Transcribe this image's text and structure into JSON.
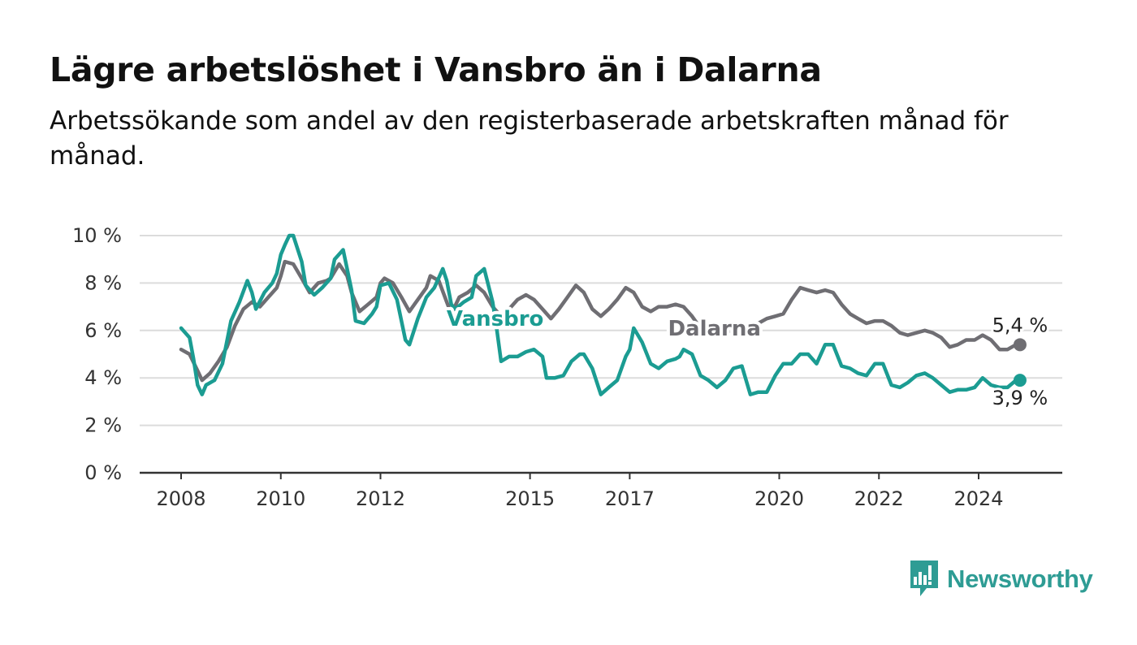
{
  "header": {
    "title": "Lägre arbetslöshet i Vansbro än i Dalarna",
    "subtitle": "Arbetssökande som andel av den registerbaserade arbetskraften månad för månad."
  },
  "brand": {
    "name": "Newsworthy",
    "color": "#2e9c94"
  },
  "chart_data": {
    "type": "line",
    "title": "Lägre arbetslöshet i Vansbro än i Dalarna",
    "subtitle": "Arbetssökande som andel av den registerbaserade arbetskraften månad för månad.",
    "xlabel": "",
    "ylabel": "",
    "x_unit": "year (decimal, monthly)",
    "xlim": [
      2008,
      2024.83
    ],
    "ylim": [
      0,
      10
    ],
    "y_ticks": [
      {
        "value": 0,
        "label": "0 %"
      },
      {
        "value": 2,
        "label": "2 %"
      },
      {
        "value": 4,
        "label": "4 %"
      },
      {
        "value": 6,
        "label": "6 %"
      },
      {
        "value": 8,
        "label": "8 %"
      },
      {
        "value": 10,
        "label": "10 %"
      }
    ],
    "x_ticks": [
      {
        "value": 2008,
        "label": "2008"
      },
      {
        "value": 2010,
        "label": "2010"
      },
      {
        "value": 2012,
        "label": "2012"
      },
      {
        "value": 2015,
        "label": "2015"
      },
      {
        "value": 2017,
        "label": "2017"
      },
      {
        "value": 2020,
        "label": "2020"
      },
      {
        "value": 2022,
        "label": "2022"
      },
      {
        "value": 2024,
        "label": "2024"
      }
    ],
    "grid": true,
    "legend": "direct labels on lines",
    "series": [
      {
        "name": "Dalarna",
        "color": "#6f6e73",
        "label_at": [
          2018.7,
          6.1
        ],
        "end_label": "5,4 %",
        "points": [
          [
            2008.0,
            5.2
          ],
          [
            2008.17,
            5.0
          ],
          [
            2008.33,
            4.3
          ],
          [
            2008.42,
            3.9
          ],
          [
            2008.58,
            4.2
          ],
          [
            2008.75,
            4.7
          ],
          [
            2008.92,
            5.3
          ],
          [
            2009.08,
            6.2
          ],
          [
            2009.25,
            6.9
          ],
          [
            2009.42,
            7.2
          ],
          [
            2009.58,
            7.0
          ],
          [
            2009.75,
            7.4
          ],
          [
            2009.92,
            7.8
          ],
          [
            2010.0,
            8.3
          ],
          [
            2010.08,
            8.9
          ],
          [
            2010.25,
            8.8
          ],
          [
            2010.42,
            8.2
          ],
          [
            2010.58,
            7.6
          ],
          [
            2010.75,
            8.0
          ],
          [
            2010.92,
            8.1
          ],
          [
            2011.0,
            8.2
          ],
          [
            2011.17,
            8.8
          ],
          [
            2011.33,
            8.3
          ],
          [
            2011.42,
            7.6
          ],
          [
            2011.58,
            6.8
          ],
          [
            2011.75,
            7.1
          ],
          [
            2011.92,
            7.4
          ],
          [
            2012.0,
            8.0
          ],
          [
            2012.08,
            8.2
          ],
          [
            2012.25,
            8.0
          ],
          [
            2012.42,
            7.4
          ],
          [
            2012.58,
            6.8
          ],
          [
            2012.75,
            7.3
          ],
          [
            2012.92,
            7.8
          ],
          [
            2013.0,
            8.3
          ],
          [
            2013.17,
            8.1
          ],
          [
            2013.33,
            7.2
          ],
          [
            2013.42,
            6.7
          ],
          [
            2013.58,
            7.4
          ],
          [
            2013.75,
            7.6
          ],
          [
            2013.92,
            7.9
          ],
          [
            2014.08,
            7.6
          ],
          [
            2014.25,
            7.0
          ],
          [
            2014.42,
            6.6
          ],
          [
            2014.58,
            6.9
          ],
          [
            2014.75,
            7.3
          ],
          [
            2014.92,
            7.5
          ],
          [
            2015.08,
            7.3
          ],
          [
            2015.25,
            6.9
          ],
          [
            2015.42,
            6.5
          ],
          [
            2015.58,
            6.9
          ],
          [
            2015.75,
            7.4
          ],
          [
            2015.92,
            7.9
          ],
          [
            2016.08,
            7.6
          ],
          [
            2016.25,
            6.9
          ],
          [
            2016.42,
            6.6
          ],
          [
            2016.58,
            6.9
          ],
          [
            2016.75,
            7.3
          ],
          [
            2016.92,
            7.8
          ],
          [
            2017.08,
            7.6
          ],
          [
            2017.25,
            7.0
          ],
          [
            2017.42,
            6.8
          ],
          [
            2017.58,
            7.0
          ],
          [
            2017.75,
            7.0
          ],
          [
            2017.92,
            7.1
          ],
          [
            2018.08,
            7.0
          ],
          [
            2018.25,
            6.6
          ],
          [
            2018.42,
            6.1
          ],
          [
            2018.58,
            6.2
          ],
          [
            2018.75,
            6.0
          ],
          [
            2018.92,
            6.1
          ],
          [
            2019.08,
            5.9
          ],
          [
            2019.25,
            5.9
          ],
          [
            2019.42,
            6.1
          ],
          [
            2019.58,
            6.3
          ],
          [
            2019.75,
            6.5
          ],
          [
            2019.92,
            6.6
          ],
          [
            2020.08,
            6.7
          ],
          [
            2020.25,
            7.3
          ],
          [
            2020.42,
            7.8
          ],
          [
            2020.58,
            7.7
          ],
          [
            2020.75,
            7.6
          ],
          [
            2020.92,
            7.7
          ],
          [
            2021.08,
            7.6
          ],
          [
            2021.25,
            7.1
          ],
          [
            2021.42,
            6.7
          ],
          [
            2021.58,
            6.5
          ],
          [
            2021.75,
            6.3
          ],
          [
            2021.92,
            6.4
          ],
          [
            2022.08,
            6.4
          ],
          [
            2022.25,
            6.2
          ],
          [
            2022.42,
            5.9
          ],
          [
            2022.58,
            5.8
          ],
          [
            2022.75,
            5.9
          ],
          [
            2022.92,
            6.0
          ],
          [
            2023.08,
            5.9
          ],
          [
            2023.25,
            5.7
          ],
          [
            2023.42,
            5.3
          ],
          [
            2023.58,
            5.4
          ],
          [
            2023.75,
            5.6
          ],
          [
            2023.92,
            5.6
          ],
          [
            2024.08,
            5.8
          ],
          [
            2024.25,
            5.6
          ],
          [
            2024.42,
            5.2
          ],
          [
            2024.58,
            5.2
          ],
          [
            2024.75,
            5.4
          ],
          [
            2024.83,
            5.4
          ]
        ]
      },
      {
        "name": "Vansbro",
        "color": "#1b9c92",
        "label_at": [
          2014.3,
          6.5
        ],
        "end_label": "3,9 %",
        "points": [
          [
            2008.0,
            6.1
          ],
          [
            2008.17,
            5.7
          ],
          [
            2008.25,
            4.8
          ],
          [
            2008.33,
            3.7
          ],
          [
            2008.42,
            3.3
          ],
          [
            2008.5,
            3.7
          ],
          [
            2008.67,
            3.9
          ],
          [
            2008.83,
            4.6
          ],
          [
            2009.0,
            6.4
          ],
          [
            2009.17,
            7.2
          ],
          [
            2009.33,
            8.1
          ],
          [
            2009.42,
            7.6
          ],
          [
            2009.5,
            6.9
          ],
          [
            2009.67,
            7.6
          ],
          [
            2009.83,
            8.0
          ],
          [
            2009.92,
            8.4
          ],
          [
            2010.0,
            9.2
          ],
          [
            2010.08,
            9.6
          ],
          [
            2010.17,
            10.0
          ],
          [
            2010.25,
            10.0
          ],
          [
            2010.42,
            8.9
          ],
          [
            2010.5,
            7.9
          ],
          [
            2010.67,
            7.5
          ],
          [
            2010.83,
            7.8
          ],
          [
            2011.0,
            8.2
          ],
          [
            2011.08,
            9.0
          ],
          [
            2011.25,
            9.4
          ],
          [
            2011.42,
            7.7
          ],
          [
            2011.5,
            6.4
          ],
          [
            2011.67,
            6.3
          ],
          [
            2011.83,
            6.7
          ],
          [
            2011.92,
            7.0
          ],
          [
            2012.0,
            7.9
          ],
          [
            2012.17,
            8.0
          ],
          [
            2012.33,
            7.3
          ],
          [
            2012.42,
            6.4
          ],
          [
            2012.5,
            5.6
          ],
          [
            2012.58,
            5.4
          ],
          [
            2012.75,
            6.5
          ],
          [
            2012.92,
            7.4
          ],
          [
            2013.08,
            7.8
          ],
          [
            2013.25,
            8.6
          ],
          [
            2013.33,
            8.1
          ],
          [
            2013.42,
            7.1
          ],
          [
            2013.5,
            6.9
          ],
          [
            2013.67,
            7.2
          ],
          [
            2013.83,
            7.4
          ],
          [
            2013.92,
            8.3
          ],
          [
            2014.08,
            8.6
          ],
          [
            2014.25,
            7.2
          ],
          [
            2014.33,
            6.1
          ],
          [
            2014.42,
            4.7
          ],
          [
            2014.58,
            4.9
          ],
          [
            2014.75,
            4.9
          ],
          [
            2014.92,
            5.1
          ],
          [
            2015.08,
            5.2
          ],
          [
            2015.25,
            4.9
          ],
          [
            2015.33,
            4.0
          ],
          [
            2015.5,
            4.0
          ],
          [
            2015.67,
            4.1
          ],
          [
            2015.83,
            4.7
          ],
          [
            2016.0,
            5.0
          ],
          [
            2016.08,
            5.0
          ],
          [
            2016.25,
            4.4
          ],
          [
            2016.42,
            3.3
          ],
          [
            2016.58,
            3.6
          ],
          [
            2016.75,
            3.9
          ],
          [
            2016.92,
            4.9
          ],
          [
            2017.0,
            5.2
          ],
          [
            2017.08,
            6.1
          ],
          [
            2017.25,
            5.5
          ],
          [
            2017.42,
            4.6
          ],
          [
            2017.58,
            4.4
          ],
          [
            2017.75,
            4.7
          ],
          [
            2017.92,
            4.8
          ],
          [
            2018.0,
            4.9
          ],
          [
            2018.08,
            5.2
          ],
          [
            2018.25,
            5.0
          ],
          [
            2018.42,
            4.1
          ],
          [
            2018.58,
            3.9
          ],
          [
            2018.75,
            3.6
          ],
          [
            2018.92,
            3.9
          ],
          [
            2019.08,
            4.4
          ],
          [
            2019.25,
            4.5
          ],
          [
            2019.42,
            3.3
          ],
          [
            2019.58,
            3.4
          ],
          [
            2019.75,
            3.4
          ],
          [
            2019.92,
            4.1
          ],
          [
            2020.08,
            4.6
          ],
          [
            2020.25,
            4.6
          ],
          [
            2020.42,
            5.0
          ],
          [
            2020.58,
            5.0
          ],
          [
            2020.75,
            4.6
          ],
          [
            2020.92,
            5.4
          ],
          [
            2021.08,
            5.4
          ],
          [
            2021.25,
            4.5
          ],
          [
            2021.42,
            4.4
          ],
          [
            2021.58,
            4.2
          ],
          [
            2021.75,
            4.1
          ],
          [
            2021.92,
            4.6
          ],
          [
            2022.08,
            4.6
          ],
          [
            2022.25,
            3.7
          ],
          [
            2022.42,
            3.6
          ],
          [
            2022.58,
            3.8
          ],
          [
            2022.75,
            4.1
          ],
          [
            2022.92,
            4.2
          ],
          [
            2023.08,
            4.0
          ],
          [
            2023.25,
            3.7
          ],
          [
            2023.42,
            3.4
          ],
          [
            2023.58,
            3.5
          ],
          [
            2023.75,
            3.5
          ],
          [
            2023.92,
            3.6
          ],
          [
            2024.08,
            4.0
          ],
          [
            2024.25,
            3.7
          ],
          [
            2024.42,
            3.6
          ],
          [
            2024.58,
            3.6
          ],
          [
            2024.75,
            3.9
          ],
          [
            2024.83,
            3.9
          ]
        ]
      }
    ]
  }
}
